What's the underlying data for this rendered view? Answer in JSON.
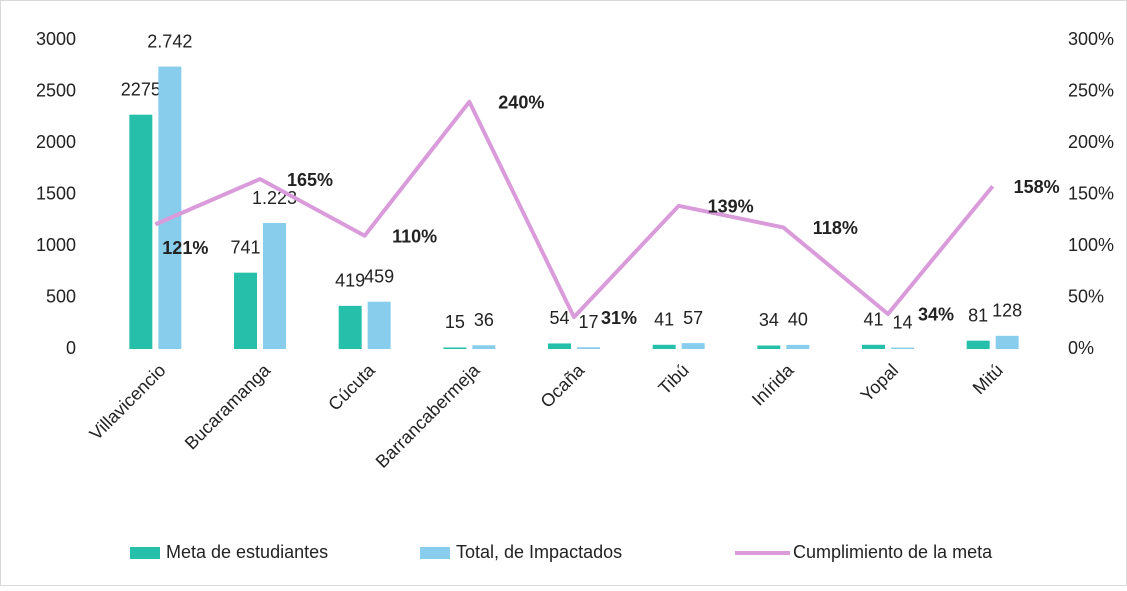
{
  "chart_data": {
    "type": "bar",
    "categories": [
      "Villavicencio",
      "Bucaramanga",
      "Cúcuta",
      "Barrancabermeja",
      "Ocaña",
      "Tibú",
      "Inírida",
      "Yopal",
      "Mitú"
    ],
    "series": [
      {
        "name": "Meta de estudiantes",
        "type": "bar",
        "color": "#26bfa9",
        "values": [
          2275,
          741,
          419,
          15,
          54,
          41,
          34,
          41,
          81
        ]
      },
      {
        "name": "Total, de Impactados",
        "type": "bar",
        "color": "#88cdeb",
        "values": [
          2742,
          1223,
          459,
          36,
          17,
          57,
          40,
          14,
          128
        ],
        "value_labels": [
          "2.742",
          "1.223",
          "459",
          "36",
          "17",
          "57",
          "40",
          "14",
          "128"
        ]
      },
      {
        "name": "Cumplimiento de la meta",
        "type": "line",
        "axis": "y2",
        "color": "#da9bdb",
        "values": [
          121,
          165,
          110,
          240,
          31,
          139,
          118,
          34,
          158
        ],
        "value_labels": [
          "121%",
          "165%",
          "110%",
          "240%",
          "31%",
          "139%",
          "118%",
          "34%",
          "158%"
        ]
      }
    ],
    "ylim": [
      0,
      3000
    ],
    "yticks": [
      0,
      500,
      1000,
      1500,
      2000,
      2500,
      3000
    ],
    "y2lim": [
      0,
      300
    ],
    "y2ticks": [
      {
        "value": 0,
        "label": "0%"
      },
      {
        "value": 50,
        "label": "50%"
      },
      {
        "value": 100,
        "label": "100%"
      },
      {
        "value": 150,
        "label": "150%"
      },
      {
        "value": 200,
        "label": "200%"
      },
      {
        "value": 250,
        "label": "250%"
      },
      {
        "value": 300,
        "label": "300%"
      }
    ],
    "legend": "bottom"
  }
}
